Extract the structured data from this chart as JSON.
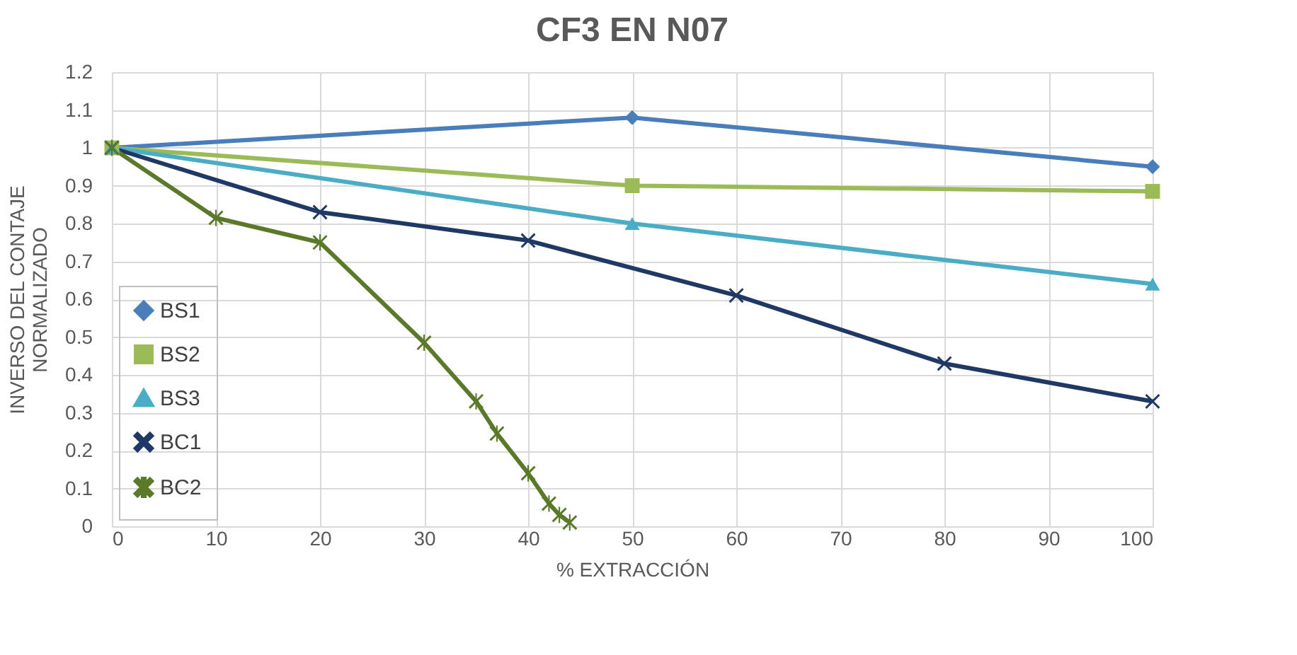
{
  "chart_data": {
    "type": "line",
    "title": "CF3 EN N07",
    "xlabel": "% EXTRACCIÓN",
    "ylabel": "INVERSO DEL CONTAJE\nNORMALIZADO",
    "xlim": [
      0,
      100
    ],
    "xticks": [
      0,
      10,
      20,
      30,
      40,
      50,
      60,
      70,
      80,
      90,
      100
    ],
    "ylim": [
      0,
      1.2
    ],
    "yticks": [
      0,
      0.1,
      0.2,
      0.3,
      0.4,
      0.5,
      0.6,
      0.7,
      0.8,
      0.9,
      1,
      1.1,
      1.2
    ],
    "grid": true,
    "legend": "bottom left",
    "series": [
      {
        "name": "BS1",
        "color": "#4a7ebb",
        "marker": "diamond",
        "x": [
          0,
          50,
          100
        ],
        "values": [
          1,
          1.08,
          0.95
        ]
      },
      {
        "name": "BS2",
        "color": "#9bbb59",
        "marker": "square",
        "x": [
          0,
          50,
          100
        ],
        "values": [
          1,
          0.9,
          0.885
        ]
      },
      {
        "name": "BS3",
        "color": "#4bacc6",
        "marker": "triangle",
        "x": [
          0,
          50,
          100
        ],
        "values": [
          1,
          0.8,
          0.64
        ]
      },
      {
        "name": "BC1",
        "color": "#1f3864",
        "marker": "cross",
        "x": [
          0,
          20,
          40,
          60,
          80,
          100
        ],
        "values": [
          1,
          0.83,
          0.755,
          0.61,
          0.43,
          0.33
        ]
      },
      {
        "name": "BC2",
        "color": "#5a7a2a",
        "marker": "star",
        "x": [
          0,
          10,
          20,
          30,
          35,
          37,
          40,
          42,
          43,
          44
        ],
        "values": [
          1,
          0.815,
          0.75,
          0.485,
          0.33,
          0.245,
          0.14,
          0.06,
          0.03,
          0.01
        ]
      }
    ]
  }
}
